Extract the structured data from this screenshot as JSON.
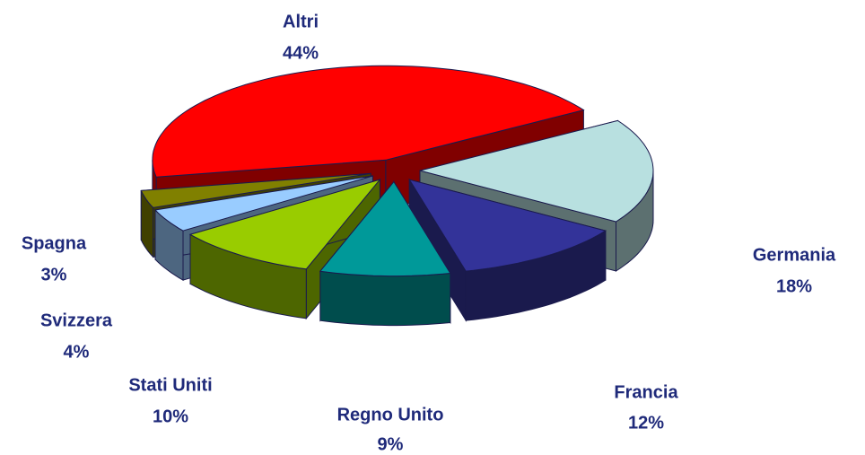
{
  "chart_data": {
    "type": "pie3d",
    "categories": [
      "Altri",
      "Germania",
      "Francia",
      "Regno Unito",
      "Stati Uniti",
      "Svizzera",
      "Spagna"
    ],
    "values": [
      44,
      18,
      12,
      9,
      10,
      4,
      3
    ],
    "value_labels": [
      "44%",
      "18%",
      "12%",
      "9%",
      "10%",
      "4%",
      "3%"
    ],
    "colors": [
      "#ff0000",
      "#b8e0e0",
      "#333399",
      "#009999",
      "#99cc00",
      "#99ccff",
      "#808000"
    ]
  }
}
